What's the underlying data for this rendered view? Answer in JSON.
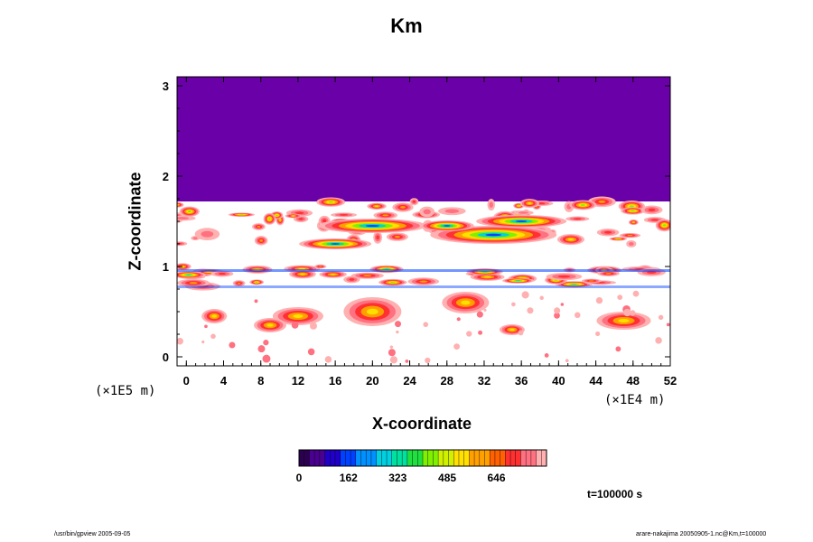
{
  "chart_data": {
    "type": "heatmap",
    "title": "Km",
    "xlabel": "X-coordinate",
    "ylabel": "Z-coordinate",
    "x_scale_note": "(×1E4 m)",
    "y_scale_note": "(×1E5 m)",
    "xlim": [
      -1,
      52
    ],
    "ylim": [
      -0.1,
      3.1
    ],
    "x_ticks": [
      0,
      4,
      8,
      12,
      16,
      20,
      24,
      28,
      32,
      36,
      40,
      44,
      48,
      52
    ],
    "y_ticks": [
      0,
      1,
      2,
      3
    ],
    "colorbar": {
      "ticks": [
        0,
        162,
        323,
        485,
        646
      ],
      "range": [
        0,
        810
      ],
      "colors": [
        "#2b0050",
        "#4a0090",
        "#2000c8",
        "#0040ff",
        "#0090ff",
        "#00d0e0",
        "#00e0a0",
        "#20e040",
        "#80f000",
        "#d0f000",
        "#ffe000",
        "#ffa000",
        "#ff6000",
        "#ff3030",
        "#ff7080",
        "#ffb0b0"
      ]
    },
    "background_color": "#6a00a8",
    "time_label": "t=100000 s"
  },
  "footer": {
    "left": "/usr/bin/gpview 2005-09-05",
    "right": "arare-nakajima 20050905-1.nc@Km,t=100000"
  }
}
